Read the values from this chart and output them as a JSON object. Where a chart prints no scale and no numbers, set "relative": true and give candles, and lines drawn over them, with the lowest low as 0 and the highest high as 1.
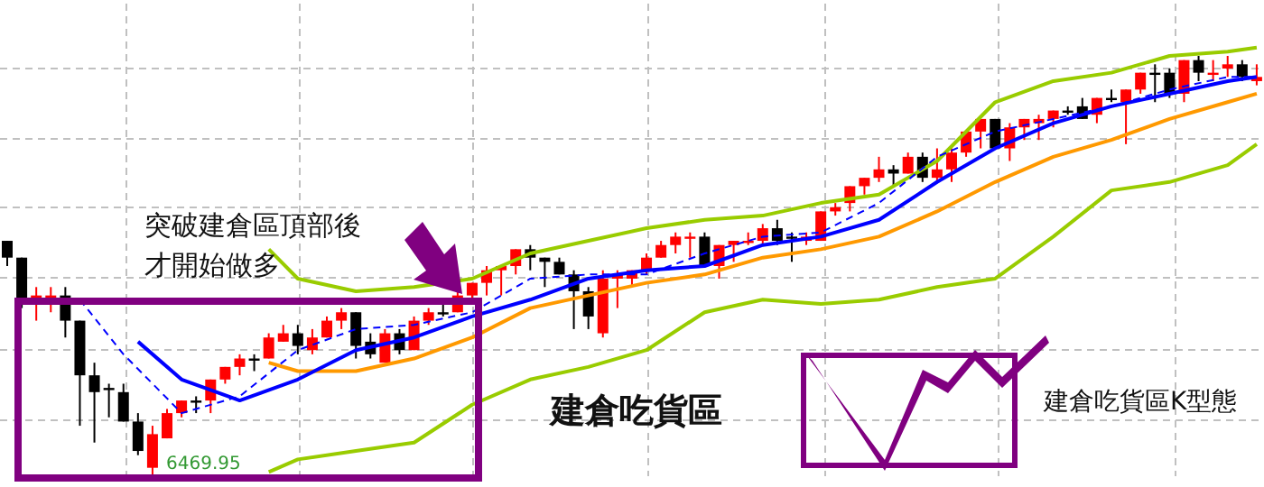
{
  "chart_data": {
    "type": "candlestick",
    "relative": true,
    "grid": true,
    "categories": [
      null,
      null,
      null,
      null,
      null,
      null,
      null,
      null,
      null,
      null,
      null,
      null,
      null,
      null,
      null,
      null,
      null,
      null,
      null,
      null,
      null,
      null,
      null,
      null,
      null,
      null,
      null,
      null,
      null,
      null,
      null,
      null,
      null,
      null,
      null,
      null,
      null,
      null,
      null,
      null,
      null,
      null,
      null,
      null,
      null,
      null,
      null,
      null,
      null,
      null,
      null,
      null,
      null,
      null,
      null,
      null,
      null,
      null,
      null,
      null,
      null,
      null,
      null,
      null,
      null,
      null,
      null,
      null,
      null,
      null,
      null,
      null,
      null,
      null,
      null,
      null,
      null,
      null,
      null,
      null,
      null,
      null,
      null,
      null,
      null,
      null,
      null
    ],
    "ohlc": [
      [
        0.56,
        0.56,
        0.5,
        0.52
      ],
      [
        0.52,
        0.52,
        0.4,
        0.42
      ],
      [
        0.42,
        0.45,
        0.37,
        0.43
      ],
      [
        0.42,
        0.45,
        0.39,
        0.43
      ],
      [
        0.43,
        0.45,
        0.33,
        0.37
      ],
      [
        0.37,
        0.37,
        0.12,
        0.24
      ],
      [
        0.24,
        0.27,
        0.08,
        0.2
      ],
      [
        0.21,
        0.22,
        0.14,
        0.21
      ],
      [
        0.2,
        0.22,
        0.13,
        0.13
      ],
      [
        0.13,
        0.15,
        0.05,
        0.06
      ],
      [
        0.02,
        0.12,
        0,
        0.1
      ],
      [
        0.09,
        0.16,
        0.09,
        0.15
      ],
      [
        0.15,
        0.18,
        0.14,
        0.18
      ],
      [
        0.18,
        0.19,
        0.15,
        0.18
      ],
      [
        0.18,
        0.23,
        0.15,
        0.23
      ],
      [
        0.23,
        0.26,
        0.22,
        0.26
      ],
      [
        0.26,
        0.29,
        0.24,
        0.28
      ],
      [
        0.28,
        0.29,
        0.25,
        0.28
      ],
      [
        0.28,
        0.34,
        0.28,
        0.33
      ],
      [
        0.32,
        0.36,
        0.32,
        0.34
      ],
      [
        0.34,
        0.36,
        0.29,
        0.31
      ],
      [
        0.3,
        0.35,
        0.29,
        0.33
      ],
      [
        0.33,
        0.38,
        0.33,
        0.37
      ],
      [
        0.37,
        0.4,
        0.35,
        0.39
      ],
      [
        0.39,
        0.39,
        0.28,
        0.31
      ],
      [
        0.32,
        0.34,
        0.28,
        0.29
      ],
      [
        0.27,
        0.35,
        0.27,
        0.34
      ],
      [
        0.34,
        0.35,
        0.29,
        0.3
      ],
      [
        0.3,
        0.38,
        0.3,
        0.37
      ],
      [
        0.37,
        0.4,
        0.36,
        0.39
      ],
      [
        0.39,
        0.42,
        0.38,
        0.39
      ],
      [
        0.39,
        0.44,
        0.39,
        0.43
      ],
      [
        0.43,
        0.46,
        0.42,
        0.46
      ],
      [
        0.46,
        0.5,
        0.43,
        0.49
      ],
      [
        0.49,
        0.5,
        0.43,
        0.5
      ],
      [
        0.5,
        0.54,
        0.48,
        0.54
      ],
      [
        0.54,
        0.55,
        0.49,
        0.52
      ],
      [
        0.52,
        0.52,
        0.45,
        0.51
      ],
      [
        0.51,
        0.52,
        0.48,
        0.48
      ],
      [
        0.48,
        0.49,
        0.35,
        0.44
      ],
      [
        0.44,
        0.45,
        0.35,
        0.38
      ],
      [
        0.34,
        0.49,
        0.33,
        0.47
      ],
      [
        0.47,
        0.49,
        0.4,
        0.48
      ],
      [
        0.47,
        0.49,
        0.45,
        0.49
      ],
      [
        0.49,
        0.53,
        0.48,
        0.52
      ],
      [
        0.52,
        0.56,
        0.52,
        0.55
      ],
      [
        0.55,
        0.58,
        0.53,
        0.57
      ],
      [
        0.57,
        0.58,
        0.52,
        0.57
      ],
      [
        0.57,
        0.58,
        0.5,
        0.5
      ],
      [
        0.5,
        0.55,
        0.47,
        0.55
      ],
      [
        0.55,
        0.56,
        0.51,
        0.56
      ],
      [
        0.56,
        0.58,
        0.55,
        0.56
      ],
      [
        0.56,
        0.6,
        0.55,
        0.59
      ],
      [
        0.59,
        0.61,
        0.55,
        0.56
      ],
      [
        0.57,
        0.58,
        0.51,
        0.57
      ],
      [
        0.56,
        0.58,
        0.55,
        0.57
      ],
      [
        0.56,
        0.63,
        0.56,
        0.63
      ],
      [
        0.63,
        0.65,
        0.62,
        0.64
      ],
      [
        0.65,
        0.69,
        0.63,
        0.69
      ],
      [
        0.69,
        0.71,
        0.67,
        0.71
      ],
      [
        0.71,
        0.76,
        0.7,
        0.73
      ],
      [
        0.73,
        0.74,
        0.69,
        0.72
      ],
      [
        0.72,
        0.77,
        0.72,
        0.76
      ],
      [
        0.76,
        0.77,
        0.7,
        0.71
      ],
      [
        0.71,
        0.78,
        0.7,
        0.73
      ],
      [
        0.73,
        0.78,
        0.7,
        0.77
      ],
      [
        0.77,
        0.82,
        0.76,
        0.82
      ],
      [
        0.82,
        0.85,
        0.78,
        0.85
      ],
      [
        0.85,
        0.85,
        0.78,
        0.78
      ],
      [
        0.78,
        0.84,
        0.75,
        0.83
      ],
      [
        0.83,
        0.85,
        0.8,
        0.85
      ],
      [
        0.84,
        0.86,
        0.8,
        0.85
      ],
      [
        0.85,
        0.87,
        0.83,
        0.87
      ],
      [
        0.87,
        0.88,
        0.86,
        0.87
      ],
      [
        0.88,
        0.9,
        0.85,
        0.85
      ],
      [
        0.86,
        0.9,
        0.84,
        0.9
      ],
      [
        0.9,
        0.92,
        0.89,
        0.9
      ],
      [
        0.89,
        0.92,
        0.79,
        0.92
      ],
      [
        0.92,
        0.96,
        0.91,
        0.96
      ],
      [
        0.96,
        0.98,
        0.89,
        0.96
      ],
      [
        0.96,
        0.97,
        0.9,
        0.91
      ],
      [
        0.91,
        0.99,
        0.89,
        0.99
      ],
      [
        0.99,
        1.0,
        0.94,
        0.96
      ],
      [
        0.96,
        0.99,
        0.94,
        0.96
      ],
      [
        0.97,
        1,
        0.95,
        0.98
      ],
      [
        0.98,
        0.99,
        0.94,
        0.95
      ],
      [
        0.94,
        0.98,
        0.93,
        0.95
      ]
    ],
    "colors": [
      "#000000",
      "#000000",
      "#ff0000",
      "#ff0000",
      "#000000",
      "#000000",
      "#000000",
      "#000000",
      "#000000",
      "#000000",
      "#ff0000",
      "#ff0000",
      "#ff0000",
      "#000000",
      "#ff0000",
      "#ff0000",
      "#ff0000",
      "#000000",
      "#ff0000",
      "#ff0000",
      "#000000",
      "#ff0000",
      "#ff0000",
      "#ff0000",
      "#000000",
      "#000000",
      "#ff0000",
      "#000000",
      "#ff0000",
      "#ff0000",
      "#000000",
      "#ff0000",
      "#ff0000",
      "#ff0000",
      "#ff0000",
      "#ff0000",
      "#000000",
      "#000000",
      "#000000",
      "#000000",
      "#000000",
      "#ff0000",
      "#ff0000",
      "#ff0000",
      "#ff0000",
      "#ff0000",
      "#ff0000",
      "#ff0000",
      "#000000",
      "#ff0000",
      "#ff0000",
      "#ff0000",
      "#ff0000",
      "#000000",
      "#000000",
      "#ff0000",
      "#ff0000",
      "#ff0000",
      "#ff0000",
      "#ff0000",
      "#ff0000",
      "#000000",
      "#ff0000",
      "#000000",
      "#ff0000",
      "#ff0000",
      "#ff0000",
      "#ff0000",
      "#000000",
      "#ff0000",
      "#ff0000",
      "#ff0000",
      "#ff0000",
      "#000000",
      "#000000",
      "#ff0000",
      "#000000",
      "#ff0000",
      "#ff0000",
      "#000000",
      "#000000",
      "#ff0000",
      "#000000",
      "#ff0000",
      "#ff0000",
      "#000000",
      "#ff0000"
    ],
    "series": [
      {
        "type": "line",
        "color": "#99cc00",
        "values": [
          null,
          null,
          null,
          null,
          null,
          null,
          null,
          null,
          null,
          null,
          null,
          null,
          null,
          null,
          null,
          null,
          null,
          null,
          0.54,
          null,
          0.47,
          null,
          null,
          null,
          0.44,
          null,
          null,
          null,
          0.45,
          null,
          null,
          null,
          0.47,
          null,
          null,
          null,
          0.53,
          null,
          null,
          null,
          0.56,
          null,
          null,
          null,
          0.59,
          null,
          null,
          null,
          0.61,
          null,
          null,
          null,
          0.62,
          null,
          null,
          null,
          0.65,
          null,
          null,
          null,
          0.67,
          null,
          null,
          null,
          0.75,
          null,
          null,
          null,
          0.89,
          null,
          null,
          null,
          0.94,
          null,
          null,
          null,
          0.96,
          null,
          null,
          null,
          1.0,
          null,
          null,
          null,
          1.01,
          null,
          1.02
        ]
      },
      {
        "type": "line",
        "color": "#99cc00",
        "values": [
          null,
          null,
          null,
          null,
          null,
          null,
          null,
          null,
          null,
          null,
          null,
          null,
          null,
          null,
          null,
          null,
          null,
          null,
          0.01,
          null,
          0.04,
          null,
          null,
          null,
          0.06,
          null,
          null,
          null,
          0.08,
          null,
          null,
          null,
          0.17,
          null,
          null,
          null,
          0.23,
          null,
          null,
          null,
          0.26,
          null,
          null,
          null,
          0.3,
          null,
          null,
          null,
          0.39,
          null,
          null,
          null,
          0.42,
          null,
          null,
          null,
          0.41,
          null,
          null,
          null,
          0.42,
          null,
          null,
          null,
          0.45,
          null,
          null,
          null,
          0.47,
          null,
          null,
          null,
          0.57,
          null,
          null,
          null,
          0.68,
          null,
          null,
          null,
          0.7,
          null,
          null,
          null,
          0.74,
          null,
          0.79
        ]
      },
      {
        "type": "line",
        "color": "#ff9900",
        "values": [
          null,
          null,
          null,
          null,
          null,
          null,
          null,
          null,
          null,
          null,
          null,
          null,
          null,
          null,
          null,
          null,
          null,
          null,
          0.27,
          null,
          0.25,
          null,
          null,
          null,
          0.25,
          null,
          null,
          null,
          0.28,
          null,
          null,
          null,
          0.33,
          null,
          null,
          null,
          0.4,
          null,
          null,
          null,
          0.43,
          null,
          null,
          null,
          0.46,
          null,
          null,
          null,
          0.48,
          null,
          null,
          null,
          0.52,
          null,
          null,
          null,
          0.54,
          null,
          null,
          null,
          0.57,
          null,
          null,
          null,
          0.63,
          null,
          null,
          null,
          0.7,
          null,
          null,
          null,
          0.76,
          null,
          null,
          null,
          0.8,
          null,
          null,
          null,
          0.85,
          null,
          null,
          null,
          0.89,
          null,
          0.91
        ]
      },
      {
        "type": "line",
        "color": "#0000ff",
        "values": [
          null,
          null,
          null,
          null,
          null,
          null,
          null,
          null,
          null,
          0.32,
          null,
          null,
          0.23,
          null,
          null,
          null,
          0.18,
          null,
          null,
          null,
          0.23,
          null,
          null,
          null,
          0.3,
          null,
          null,
          null,
          0.33,
          null,
          null,
          null,
          0.38,
          null,
          null,
          null,
          0.42,
          null,
          null,
          null,
          0.47,
          null,
          null,
          null,
          0.49,
          null,
          null,
          null,
          0.5,
          null,
          null,
          null,
          0.55,
          null,
          null,
          null,
          0.57,
          null,
          null,
          null,
          0.61,
          null,
          null,
          null,
          0.7,
          null,
          null,
          null,
          0.78,
          null,
          null,
          null,
          0.84,
          null,
          null,
          null,
          0.88,
          null,
          null,
          null,
          0.91,
          null,
          null,
          null,
          0.94,
          null,
          0.95
        ]
      },
      {
        "type": "line",
        "color": "#0000ff",
        "line_style": "dashed",
        "values": [
          null,
          null,
          null,
          null,
          null,
          0.42,
          null,
          null,
          0.29,
          null,
          null,
          null,
          0.15,
          null,
          null,
          null,
          0.19,
          null,
          null,
          null,
          0.3,
          null,
          null,
          null,
          0.35,
          null,
          null,
          null,
          0.36,
          null,
          null,
          null,
          0.39,
          null,
          null,
          null,
          0.47,
          null,
          null,
          null,
          0.48,
          null,
          null,
          null,
          0.48,
          null,
          null,
          null,
          0.53,
          null,
          null,
          null,
          0.57,
          null,
          null,
          null,
          0.58,
          null,
          null,
          null,
          0.65,
          null,
          null,
          null,
          0.76,
          null,
          null,
          null,
          0.82,
          null,
          null,
          null,
          0.85,
          null,
          null,
          null,
          0.88,
          null,
          null,
          null,
          0.92,
          null,
          null,
          null,
          0.95,
          null,
          0.95
        ]
      }
    ],
    "annotations": [
      "突破建倉區頂部後",
      "才開始做多",
      "建倉吃貨區",
      "建倉吃貨區K型態",
      "6469.95"
    ]
  }
}
